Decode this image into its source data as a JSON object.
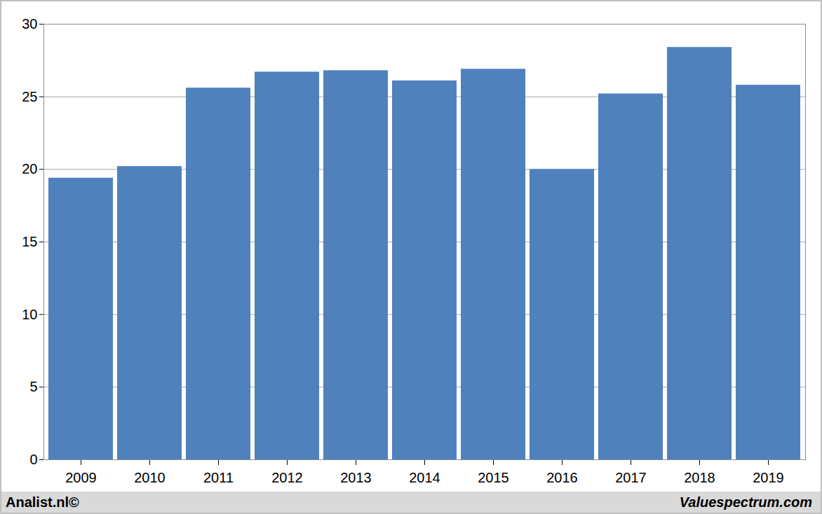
{
  "chart_data": {
    "type": "bar",
    "categories": [
      "2009",
      "2010",
      "2011",
      "2012",
      "2013",
      "2014",
      "2015",
      "2016",
      "2017",
      "2018",
      "2019"
    ],
    "values": [
      19.4,
      20.2,
      25.6,
      26.7,
      26.8,
      26.1,
      26.9,
      20.0,
      25.2,
      28.4,
      25.8
    ],
    "color": "#4f81bd",
    "ylim": [
      0,
      30
    ],
    "yticks": [
      0,
      5,
      10,
      15,
      20,
      25,
      30
    ],
    "grid": true,
    "annotations": [
      "Analist.nl©",
      "Valuespectrum.com"
    ]
  }
}
